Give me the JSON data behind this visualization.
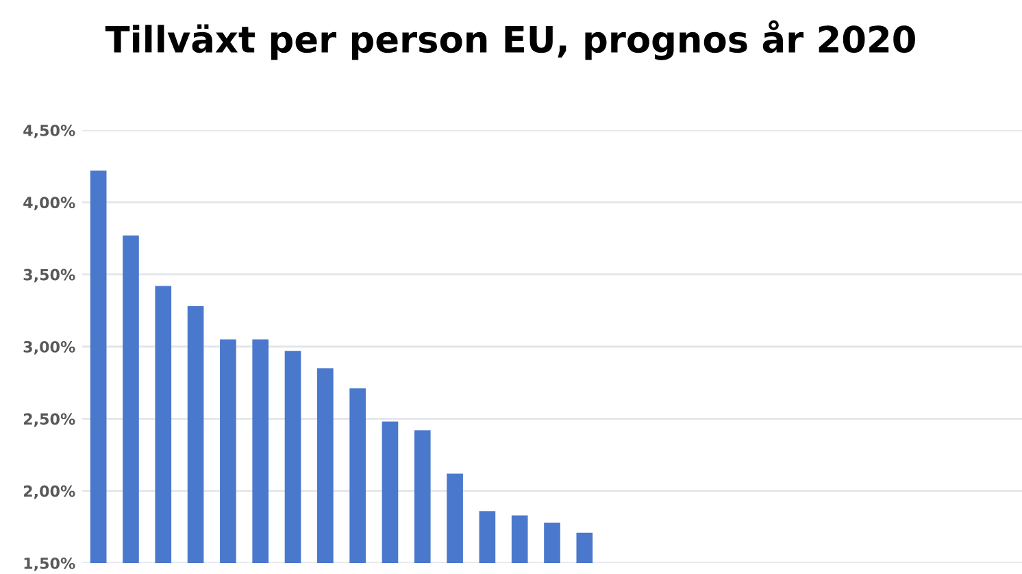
{
  "chart_data": {
    "type": "bar",
    "title": "Tillväxt per person EU, prognos år 2020",
    "categories": [
      null,
      null,
      null,
      null,
      null,
      null,
      null,
      null,
      null,
      null,
      null,
      null,
      null,
      null,
      null,
      null,
      null,
      null,
      null,
      null,
      null,
      null,
      null,
      null,
      null,
      null,
      null,
      null,
      null
    ],
    "values": [
      4.22,
      3.77,
      3.42,
      3.28,
      3.05,
      3.05,
      2.97,
      2.85,
      2.71,
      2.48,
      2.42,
      2.12,
      1.86,
      1.83,
      1.78,
      1.71,
      null,
      null,
      null,
      null,
      null,
      null,
      null,
      null,
      null,
      null,
      null,
      null,
      null
    ],
    "color": "#4a78cc",
    "ylim": [
      1.5,
      4.5
    ],
    "yticks": [
      {
        "value": 1.5,
        "label": "1,50%"
      },
      {
        "value": 2.0,
        "label": "2,00%"
      },
      {
        "value": 2.5,
        "label": "2,50%"
      },
      {
        "value": 3.0,
        "label": "3,00%"
      },
      {
        "value": 3.5,
        "label": "3,50%"
      },
      {
        "value": 4.0,
        "label": "4,00%"
      },
      {
        "value": 4.5,
        "label": "4,50%"
      }
    ],
    "grid": "y",
    "tick_labels": "y"
  }
}
